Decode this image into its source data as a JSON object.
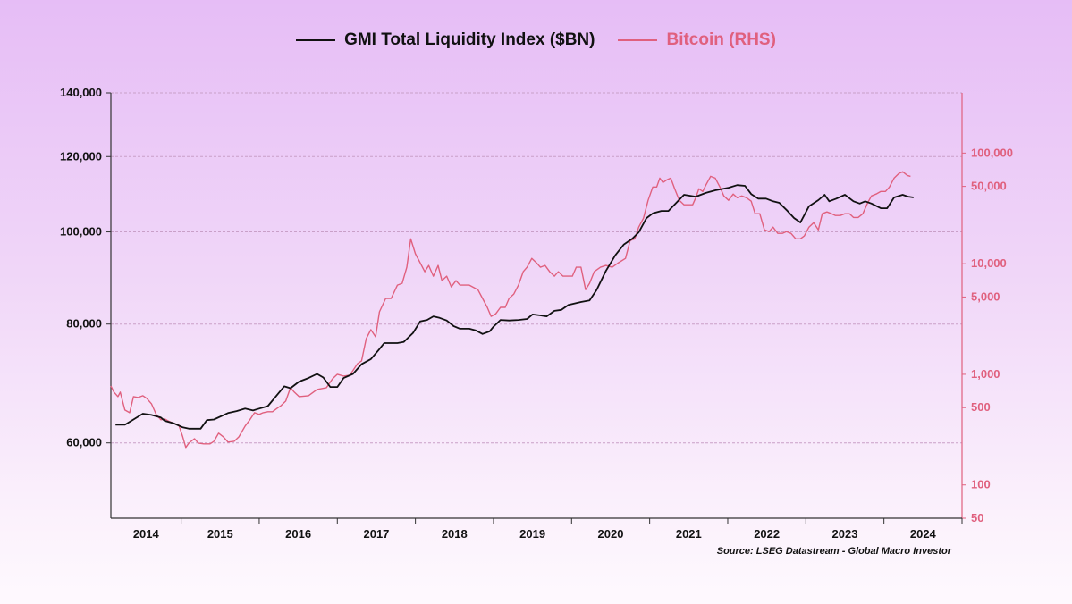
{
  "legend": [
    {
      "label": "GMI Total Liquidity Index ($BN)",
      "color": "#111111"
    },
    {
      "label": "Bitcoin (RHS)",
      "color": "#e0607e"
    }
  ],
  "source": "Source: LSEG Datastream - Global Macro Investor",
  "chart_data": {
    "type": "line",
    "title": "",
    "xlabel": "",
    "ylabel": "",
    "ylabel_right": "",
    "x_unit": "decimal year",
    "xlim": [
      2014.1,
      2025.0
    ],
    "x_ticks": [
      2014,
      2015,
      2016,
      2017,
      2018,
      2019,
      2020,
      2021,
      2022,
      2023,
      2024
    ],
    "y_left": {
      "scale": "log",
      "lim": [
        50000,
        140000
      ],
      "ticks": [
        60000,
        80000,
        100000,
        120000,
        140000
      ],
      "tick_labels": [
        "60,000",
        "80,000",
        "100,000",
        "120,000",
        "140,000"
      ],
      "grid": true
    },
    "y_right": {
      "scale": "log",
      "lim": [
        50,
        350000
      ],
      "ticks": [
        50,
        100,
        500,
        1000,
        5000,
        10000,
        50000,
        100000
      ],
      "tick_labels": [
        "50",
        "100",
        "500",
        "1,000",
        "5,000",
        "10,000",
        "50,000",
        "100,000"
      ],
      "color": "#e0607e"
    },
    "series": [
      {
        "name": "GMI Total Liquidity Index ($BN)",
        "axis": "left",
        "color": "#111111",
        "x": [
          2014.16,
          2014.28,
          2014.39,
          2014.51,
          2014.62,
          2014.74,
          2014.79,
          2014.91,
          2015.02,
          2015.1,
          2015.25,
          2015.33,
          2015.42,
          2015.6,
          2015.71,
          2015.82,
          2015.92,
          2016.0,
          2016.11,
          2016.23,
          2016.32,
          2016.4,
          2016.51,
          2016.63,
          2016.74,
          2016.82,
          2016.91,
          2017.0,
          2017.08,
          2017.2,
          2017.31,
          2017.43,
          2017.54,
          2017.6,
          2017.77,
          2017.85,
          2017.97,
          2018.06,
          2018.15,
          2018.23,
          2018.31,
          2018.4,
          2018.49,
          2018.57,
          2018.69,
          2018.77,
          2018.86,
          2018.95,
          2019.0,
          2019.09,
          2019.2,
          2019.32,
          2019.43,
          2019.5,
          2019.6,
          2019.68,
          2019.78,
          2019.87,
          2019.96,
          2020.12,
          2020.23,
          2020.32,
          2020.44,
          2020.56,
          2020.67,
          2020.78,
          2020.86,
          2020.96,
          2021.04,
          2021.15,
          2021.24,
          2021.36,
          2021.44,
          2021.59,
          2021.72,
          2021.84,
          2022.01,
          2022.12,
          2022.22,
          2022.3,
          2022.39,
          2022.49,
          2022.58,
          2022.66,
          2022.75,
          2022.85,
          2022.93,
          2023.04,
          2023.16,
          2023.24,
          2023.3,
          2023.39,
          2023.5,
          2023.61,
          2023.69,
          2023.76,
          2023.84,
          2023.96,
          2024.04,
          2024.13,
          2024.24,
          2024.31,
          2024.38
        ],
        "values": [
          62700,
          62700,
          63500,
          64400,
          64200,
          63800,
          63300,
          62900,
          62300,
          62100,
          62100,
          63400,
          63500,
          64500,
          64800,
          65200,
          64900,
          65200,
          65600,
          67400,
          68800,
          68500,
          69600,
          70200,
          70900,
          70300,
          68700,
          68700,
          70200,
          70900,
          72600,
          73500,
          75300,
          76400,
          76400,
          76600,
          78300,
          80500,
          80800,
          81500,
          81200,
          80700,
          79600,
          79100,
          79100,
          78800,
          78100,
          78600,
          79500,
          80800,
          80700,
          80800,
          81000,
          81900,
          81700,
          81500,
          82600,
          82800,
          83800,
          84400,
          84700,
          86900,
          91000,
          94500,
          97000,
          98400,
          99900,
          103400,
          104600,
          105200,
          105200,
          107700,
          109400,
          108900,
          109900,
          110600,
          111300,
          112000,
          111800,
          109600,
          108400,
          108400,
          107700,
          107300,
          105500,
          103400,
          102300,
          106400,
          108000,
          109400,
          107700,
          108400,
          109400,
          107700,
          107100,
          107700,
          107100,
          105900,
          105900,
          108700,
          109400,
          108900,
          108700
        ]
      },
      {
        "name": "Bitcoin (RHS)",
        "axis": "right",
        "color": "#e0607e",
        "x": [
          2014.1,
          2014.14,
          2014.19,
          2014.22,
          2014.28,
          2014.34,
          2014.39,
          2014.45,
          2014.51,
          2014.56,
          2014.62,
          2014.68,
          2014.74,
          2014.79,
          2014.85,
          2014.91,
          2014.97,
          2015.02,
          2015.06,
          2015.1,
          2015.17,
          2015.22,
          2015.29,
          2015.37,
          2015.42,
          2015.48,
          2015.54,
          2015.6,
          2015.68,
          2015.74,
          2015.82,
          2015.88,
          2015.94,
          2016.0,
          2016.05,
          2016.11,
          2016.17,
          2016.23,
          2016.28,
          2016.34,
          2016.4,
          2016.45,
          2016.51,
          2016.63,
          2016.74,
          2016.86,
          2016.94,
          2017.0,
          2017.08,
          2017.16,
          2017.26,
          2017.31,
          2017.37,
          2017.43,
          2017.49,
          2017.54,
          2017.62,
          2017.69,
          2017.77,
          2017.83,
          2017.89,
          2017.94,
          2018.0,
          2018.06,
          2018.12,
          2018.17,
          2018.23,
          2018.29,
          2018.34,
          2018.4,
          2018.46,
          2018.52,
          2018.57,
          2018.63,
          2018.69,
          2018.8,
          2018.86,
          2018.92,
          2018.97,
          2019.03,
          2019.09,
          2019.15,
          2019.2,
          2019.26,
          2019.32,
          2019.38,
          2019.43,
          2019.49,
          2019.55,
          2019.6,
          2019.66,
          2019.72,
          2019.78,
          2019.83,
          2019.89,
          2020.01,
          2020.06,
          2020.12,
          2020.18,
          2020.23,
          2020.29,
          2020.37,
          2020.44,
          2020.52,
          2020.6,
          2020.69,
          2020.75,
          2020.81,
          2020.86,
          2020.92,
          2020.98,
          2021.04,
          2021.09,
          2021.13,
          2021.17,
          2021.22,
          2021.27,
          2021.32,
          2021.38,
          2021.44,
          2021.49,
          2021.55,
          2021.59,
          2021.63,
          2021.68,
          2021.72,
          2021.78,
          2021.84,
          2021.9,
          2021.95,
          2022.01,
          2022.07,
          2022.12,
          2022.18,
          2022.24,
          2022.3,
          2022.35,
          2022.41,
          2022.47,
          2022.53,
          2022.58,
          2022.64,
          2022.7,
          2022.75,
          2022.81,
          2022.87,
          2022.93,
          2022.98,
          2023.04,
          2023.1,
          2023.16,
          2023.21,
          2023.27,
          2023.33,
          2023.38,
          2023.44,
          2023.5,
          2023.56,
          2023.61,
          2023.67,
          2023.73,
          2023.79,
          2023.84,
          2023.9,
          2023.96,
          2024.02,
          2024.07,
          2024.13,
          2024.19,
          2024.24,
          2024.3,
          2024.34
        ],
        "values": [
          785,
          690,
          629,
          690,
          476,
          450,
          629,
          617,
          640,
          606,
          542,
          434,
          388,
          395,
          374,
          360,
          347,
          272,
          218,
          239,
          262,
          239,
          235,
          235,
          248,
          294,
          272,
          244,
          248,
          272,
          341,
          388,
          450,
          434,
          450,
          459,
          459,
          494,
          522,
          573,
          757,
          690,
          629,
          640,
          729,
          757,
          912,
          1000,
          964,
          982,
          1250,
          1322,
          2100,
          2530,
          2180,
          3670,
          4850,
          4850,
          6400,
          6650,
          9290,
          16800,
          12300,
          10200,
          8460,
          9640,
          7710,
          9640,
          7030,
          7710,
          6170,
          7030,
          6400,
          6400,
          6400,
          5830,
          4850,
          4030,
          3340,
          3530,
          4030,
          4030,
          4850,
          5320,
          6400,
          8460,
          9290,
          11170,
          10200,
          9290,
          9640,
          8460,
          7710,
          8460,
          7710,
          7710,
          9290,
          9290,
          5830,
          6650,
          8460,
          9290,
          9640,
          9290,
          10200,
          11170,
          16200,
          16800,
          21400,
          25800,
          37400,
          49400,
          49400,
          59400,
          54200,
          57300,
          59400,
          47600,
          37400,
          34100,
          34100,
          34100,
          39500,
          47600,
          45000,
          51300,
          61600,
          59400,
          49400,
          41000,
          37400,
          42600,
          39500,
          41000,
          39500,
          36700,
          28300,
          28300,
          20200,
          19500,
          21400,
          18800,
          18800,
          19500,
          18800,
          16800,
          16800,
          17800,
          21400,
          23500,
          20200,
          28300,
          29400,
          28300,
          27300,
          27300,
          28300,
          28300,
          26200,
          26200,
          28300,
          35300,
          41000,
          42600,
          45000,
          45000,
          49400,
          59400,
          65300,
          67800,
          62800,
          61600
        ]
      }
    ]
  }
}
